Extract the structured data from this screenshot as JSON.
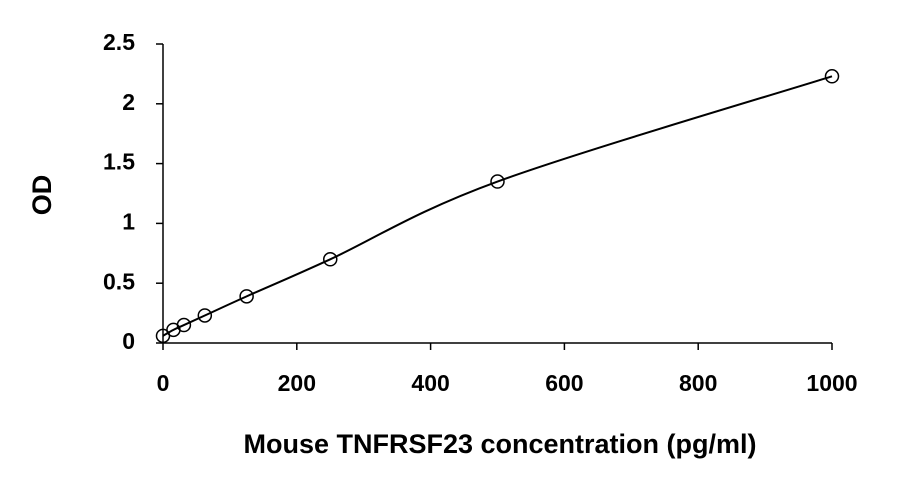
{
  "chart_data": {
    "type": "scatter",
    "x_label": "Mouse TNFRSF23 concentration (pg/ml)",
    "y_label": "OD",
    "x": [
      0,
      15.6,
      31.25,
      62.5,
      125,
      250,
      500,
      1000
    ],
    "series": [
      {
        "values": [
          0.06,
          0.11,
          0.15,
          0.23,
          0.39,
          0.7,
          1.35,
          2.23
        ],
        "color": "#000000"
      }
    ],
    "smooth_line": true,
    "xlim": [
      0,
      1000
    ],
    "xticks": [
      0,
      200,
      400,
      600,
      800,
      1000
    ],
    "ylim": [
      0,
      2.5
    ],
    "yticks": [
      0,
      0.5,
      1,
      1.5,
      2,
      2.5
    ],
    "grid": false
  }
}
